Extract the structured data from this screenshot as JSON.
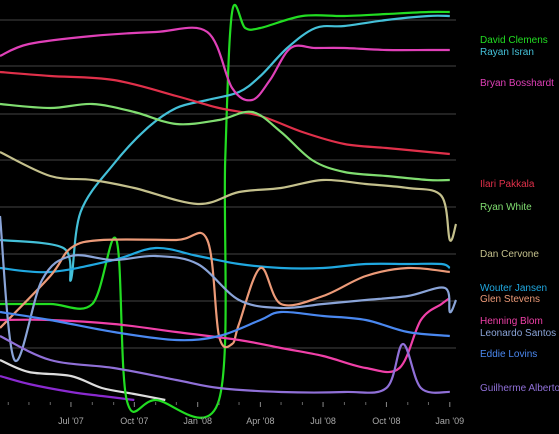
{
  "chart_data": {
    "type": "line",
    "title": "",
    "xlabel": "",
    "ylabel": "",
    "background": "#000000",
    "grid": true,
    "legend_placement": "right",
    "x_tick_labels": [
      "Jul '07",
      "Oct '07",
      "Jan '08",
      "Apr '08",
      "Jul '08",
      "Oct '08",
      "Jan '09"
    ],
    "x_tick_dates": [
      "2007-07-01",
      "2007-10-01",
      "2008-01-01",
      "2008-04-01",
      "2008-07-01",
      "2008-10-01",
      "2009-01-01"
    ],
    "x_range": [
      "2007-03-20",
      "2009-01-10"
    ],
    "y_range": [
      0,
      1
    ],
    "series": [
      {
        "name": "David Clemens",
        "color": "#22dd22",
        "points": [
          [
            "2007-03-20",
            0.24
          ],
          [
            "2007-06-01",
            0.24
          ],
          [
            "2007-08-01",
            0.24
          ],
          [
            "2007-09-05",
            0.4
          ],
          [
            "2007-09-20",
            0.0
          ],
          [
            "2007-11-01",
            0.0
          ],
          [
            "2008-02-01",
            0.0
          ],
          [
            "2008-02-10",
            0.6
          ],
          [
            "2008-02-20",
            0.97
          ],
          [
            "2008-03-10",
            0.93
          ],
          [
            "2008-04-01",
            0.93
          ],
          [
            "2008-06-01",
            0.96
          ],
          [
            "2008-08-01",
            0.96
          ],
          [
            "2008-10-01",
            0.965
          ],
          [
            "2008-12-01",
            0.97
          ],
          [
            "2009-01-01",
            0.97
          ]
        ]
      },
      {
        "name": "Rayan Isran",
        "color": "#44c0d8",
        "points": [
          [
            "2007-03-20",
            0.4
          ],
          [
            "2007-06-20",
            0.38
          ],
          [
            "2007-07-01",
            0.3
          ],
          [
            "2007-07-15",
            0.47
          ],
          [
            "2007-09-01",
            0.59
          ],
          [
            "2007-10-20",
            0.68
          ],
          [
            "2007-12-01",
            0.73
          ],
          [
            "2008-01-15",
            0.75
          ],
          [
            "2008-03-01",
            0.77
          ],
          [
            "2008-04-01",
            0.81
          ],
          [
            "2008-05-10",
            0.88
          ],
          [
            "2008-06-20",
            0.93
          ],
          [
            "2008-08-01",
            0.935
          ],
          [
            "2008-10-01",
            0.95
          ],
          [
            "2008-12-01",
            0.96
          ],
          [
            "2009-01-01",
            0.96
          ]
        ]
      },
      {
        "name": "Bryan Bosshardt",
        "color": "#e040b8",
        "points": [
          [
            "2007-03-20",
            0.86
          ],
          [
            "2007-05-01",
            0.89
          ],
          [
            "2007-08-01",
            0.91
          ],
          [
            "2007-11-01",
            0.92
          ],
          [
            "2008-01-15",
            0.92
          ],
          [
            "2008-02-20",
            0.78
          ],
          [
            "2008-03-20",
            0.75
          ],
          [
            "2008-04-15",
            0.8
          ],
          [
            "2008-05-15",
            0.88
          ],
          [
            "2008-06-20",
            0.88
          ],
          [
            "2008-08-01",
            0.88
          ],
          [
            "2008-10-01",
            0.875
          ],
          [
            "2008-12-01",
            0.875
          ],
          [
            "2009-01-01",
            0.875
          ]
        ]
      },
      {
        "name": "Ilari Pakkala",
        "color": "#e0304a",
        "points": [
          [
            "2007-03-20",
            0.82
          ],
          [
            "2007-06-01",
            0.81
          ],
          [
            "2007-09-01",
            0.8
          ],
          [
            "2007-12-01",
            0.76
          ],
          [
            "2008-02-01",
            0.73
          ],
          [
            "2008-04-01",
            0.71
          ],
          [
            "2008-06-01",
            0.67
          ],
          [
            "2008-08-01",
            0.64
          ],
          [
            "2008-10-01",
            0.63
          ],
          [
            "2008-12-01",
            0.62
          ],
          [
            "2009-01-01",
            0.615
          ]
        ]
      },
      {
        "name": "Ryan White",
        "color": "#80dd70",
        "points": [
          [
            "2007-03-20",
            0.74
          ],
          [
            "2007-06-01",
            0.73
          ],
          [
            "2007-08-01",
            0.74
          ],
          [
            "2007-10-01",
            0.72
          ],
          [
            "2007-12-01",
            0.69
          ],
          [
            "2008-02-01",
            0.7
          ],
          [
            "2008-03-20",
            0.72
          ],
          [
            "2008-05-01",
            0.67
          ],
          [
            "2008-06-15",
            0.6
          ],
          [
            "2008-08-01",
            0.57
          ],
          [
            "2008-10-01",
            0.56
          ],
          [
            "2008-12-01",
            0.55
          ],
          [
            "2009-01-01",
            0.55
          ]
        ]
      },
      {
        "name": "Dan Cervone",
        "color": "#c4c08c",
        "points": [
          [
            "2007-03-20",
            0.62
          ],
          [
            "2007-06-01",
            0.56
          ],
          [
            "2007-08-01",
            0.55
          ],
          [
            "2007-10-01",
            0.53
          ],
          [
            "2008-01-01",
            0.49
          ],
          [
            "2008-03-01",
            0.52
          ],
          [
            "2008-05-01",
            0.53
          ],
          [
            "2008-07-01",
            0.55
          ],
          [
            "2008-09-01",
            0.54
          ],
          [
            "2008-11-01",
            0.53
          ],
          [
            "2008-12-20",
            0.51
          ],
          [
            "2009-01-01",
            0.4
          ],
          [
            "2009-01-10",
            0.44
          ]
        ]
      },
      {
        "name": "Wouter Jansen",
        "color": "#20a8e0",
        "points": [
          [
            "2007-03-20",
            0.33
          ],
          [
            "2007-06-01",
            0.32
          ],
          [
            "2007-09-01",
            0.35
          ],
          [
            "2007-11-01",
            0.38
          ],
          [
            "2008-01-01",
            0.36
          ],
          [
            "2008-03-01",
            0.34
          ],
          [
            "2008-05-01",
            0.33
          ],
          [
            "2008-07-01",
            0.33
          ],
          [
            "2008-09-01",
            0.34
          ],
          [
            "2008-11-01",
            0.34
          ],
          [
            "2008-12-20",
            0.34
          ],
          [
            "2009-01-01",
            0.33
          ]
        ]
      },
      {
        "name": "Glen Stevens",
        "color": "#ec9a78",
        "points": [
          [
            "2007-03-20",
            0.18
          ],
          [
            "2007-06-01",
            0.31
          ],
          [
            "2007-07-01",
            0.38
          ],
          [
            "2007-08-15",
            0.4
          ],
          [
            "2007-12-01",
            0.4
          ],
          [
            "2008-01-15",
            0.4
          ],
          [
            "2008-02-01",
            0.16
          ],
          [
            "2008-02-20",
            0.14
          ],
          [
            "2008-03-01",
            0.19
          ],
          [
            "2008-04-01",
            0.33
          ],
          [
            "2008-05-01",
            0.24
          ],
          [
            "2008-07-01",
            0.26
          ],
          [
            "2008-09-01",
            0.31
          ],
          [
            "2008-11-01",
            0.33
          ],
          [
            "2009-01-01",
            0.32
          ]
        ]
      },
      {
        "name": "Henning Blom",
        "color": "#f040a8",
        "points": [
          [
            "2007-03-20",
            0.2
          ],
          [
            "2007-06-01",
            0.2
          ],
          [
            "2007-09-01",
            0.19
          ],
          [
            "2007-12-01",
            0.17
          ],
          [
            "2008-03-01",
            0.15
          ],
          [
            "2008-05-01",
            0.13
          ],
          [
            "2008-07-01",
            0.11
          ],
          [
            "2008-09-01",
            0.08
          ],
          [
            "2008-10-20",
            0.08
          ],
          [
            "2008-11-20",
            0.2
          ],
          [
            "2008-12-20",
            0.24
          ],
          [
            "2009-01-01",
            0.255
          ]
        ]
      },
      {
        "name": "Leonardo Santos",
        "color": "#8aa4d8",
        "points": [
          [
            "2007-03-20",
            0.46
          ],
          [
            "2007-04-10",
            0.1
          ],
          [
            "2007-05-20",
            0.3
          ],
          [
            "2007-07-01",
            0.36
          ],
          [
            "2007-09-01",
            0.35
          ],
          [
            "2007-11-01",
            0.36
          ],
          [
            "2008-01-01",
            0.34
          ],
          [
            "2008-03-01",
            0.25
          ],
          [
            "2008-05-01",
            0.23
          ],
          [
            "2008-07-01",
            0.24
          ],
          [
            "2008-09-01",
            0.25
          ],
          [
            "2008-11-01",
            0.26
          ],
          [
            "2008-12-25",
            0.28
          ],
          [
            "2009-01-01",
            0.22
          ],
          [
            "2009-01-10",
            0.25
          ]
        ]
      },
      {
        "name": "Eddie Lovins",
        "color": "#4a88f0",
        "points": [
          [
            "2007-03-20",
            0.22
          ],
          [
            "2007-06-01",
            0.2
          ],
          [
            "2007-09-01",
            0.17
          ],
          [
            "2007-12-01",
            0.15
          ],
          [
            "2008-02-01",
            0.16
          ],
          [
            "2008-04-01",
            0.2
          ],
          [
            "2008-05-01",
            0.22
          ],
          [
            "2008-07-01",
            0.21
          ],
          [
            "2008-09-01",
            0.2
          ],
          [
            "2008-11-01",
            0.17
          ],
          [
            "2009-01-01",
            0.16
          ]
        ]
      },
      {
        "name": "Guilherme Alberto",
        "color": "#9070d8",
        "points": [
          [
            "2007-03-20",
            0.16
          ],
          [
            "2007-06-01",
            0.1
          ],
          [
            "2007-09-01",
            0.08
          ],
          [
            "2007-12-01",
            0.05
          ],
          [
            "2008-02-01",
            0.03
          ],
          [
            "2008-05-01",
            0.02
          ],
          [
            "2008-08-01",
            0.02
          ],
          [
            "2008-10-01",
            0.03
          ],
          [
            "2008-10-25",
            0.14
          ],
          [
            "2008-11-20",
            0.03
          ],
          [
            "2009-01-01",
            0.02
          ]
        ]
      }
    ],
    "extra_series": [
      {
        "color": "#dddddd",
        "points": [
          [
            "2007-03-20",
            0.1
          ],
          [
            "2007-05-01",
            0.07
          ],
          [
            "2007-07-01",
            0.06
          ],
          [
            "2007-08-15",
            0.03
          ],
          [
            "2007-10-01",
            0.015
          ],
          [
            "2007-11-15",
            0.0
          ]
        ]
      },
      {
        "color": "#8a2ad0",
        "points": [
          [
            "2007-03-20",
            0.06
          ],
          [
            "2007-05-01",
            0.04
          ],
          [
            "2007-07-01",
            0.02
          ],
          [
            "2007-08-15",
            0.01
          ],
          [
            "2007-10-01",
            0.0
          ]
        ]
      }
    ]
  }
}
